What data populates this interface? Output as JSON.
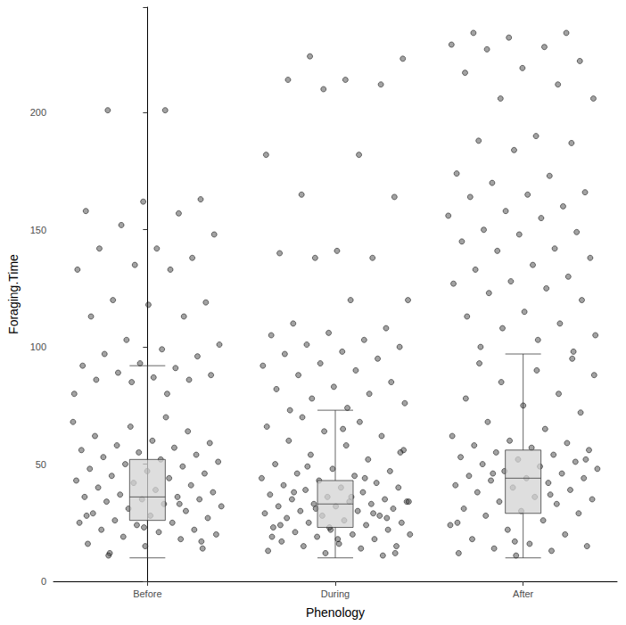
{
  "chart_data": {
    "type": "boxplot",
    "x_label": "Phenology",
    "y_label": "Foraging.Time",
    "categories": [
      "Before",
      "During",
      "After"
    ],
    "ylim": [
      0,
      245
    ],
    "yticks": [
      0,
      50,
      100,
      150,
      200
    ],
    "grid": false,
    "color": "#d3d3d3",
    "boxes": [
      {
        "min": 10,
        "q1": 26,
        "median": 36,
        "q3": 52,
        "max": 92
      },
      {
        "min": 10,
        "q1": 23,
        "median": 33,
        "q3": 43,
        "max": 73
      },
      {
        "min": 10,
        "q1": 29,
        "median": 44,
        "q3": 56,
        "max": 97
      }
    ],
    "points": [
      [
        201,
        201,
        163,
        162,
        158,
        157,
        152,
        148,
        142,
        142,
        138,
        135,
        133,
        133,
        120,
        119,
        118,
        113,
        113,
        103,
        101,
        99,
        97,
        96,
        93,
        92,
        91,
        89,
        88,
        87,
        86,
        86,
        85,
        80,
        80,
        12,
        14,
        15,
        16,
        18,
        19,
        20,
        21,
        22,
        22,
        24,
        25,
        25,
        26,
        27,
        28,
        29,
        30,
        31,
        32,
        33,
        34,
        35,
        35,
        36,
        36,
        37,
        38,
        39,
        40,
        41,
        42,
        43,
        44,
        45,
        46,
        47,
        48,
        49,
        50,
        51,
        52,
        53,
        54,
        55,
        56,
        57,
        58,
        59,
        60,
        62,
        64,
        66,
        68,
        70,
        11,
        17,
        23,
        28,
        33
      ],
      [
        224,
        223,
        214,
        214,
        212,
        210,
        182,
        182,
        165,
        164,
        141,
        140,
        138,
        138,
        120,
        120,
        110,
        108,
        106,
        105,
        103,
        101,
        100,
        98,
        97,
        95,
        93,
        92,
        90,
        88,
        85,
        83,
        82,
        80,
        78,
        76,
        74,
        73,
        11,
        12,
        13,
        14,
        15,
        15,
        16,
        17,
        18,
        19,
        20,
        20,
        21,
        22,
        22,
        23,
        24,
        25,
        25,
        26,
        27,
        28,
        28,
        29,
        30,
        30,
        31,
        32,
        32,
        33,
        33,
        34,
        34,
        35,
        35,
        36,
        37,
        38,
        39,
        40,
        40,
        41,
        42,
        43,
        44,
        45,
        46,
        47,
        48,
        50,
        52,
        54,
        56,
        58,
        60,
        62,
        64,
        66,
        68,
        70,
        12,
        18,
        24,
        29,
        31,
        34,
        36,
        38,
        27,
        23,
        19,
        44,
        49,
        55,
        65
      ],
      [
        234,
        234,
        232,
        229,
        228,
        227,
        222,
        219,
        217,
        212,
        206,
        206,
        190,
        188,
        187,
        184,
        174,
        173,
        170,
        166,
        165,
        164,
        160,
        158,
        156,
        155,
        150,
        149,
        148,
        145,
        142,
        141,
        138,
        135,
        133,
        130,
        128,
        127,
        125,
        123,
        120,
        115,
        113,
        110,
        108,
        105,
        103,
        100,
        98,
        11,
        12,
        13,
        14,
        15,
        16,
        18,
        20,
        22,
        24,
        26,
        28,
        29,
        30,
        31,
        33,
        34,
        35,
        36,
        38,
        39,
        40,
        41,
        42,
        43,
        44,
        44,
        45,
        46,
        47,
        48,
        49,
        50,
        51,
        52,
        53,
        54,
        55,
        56,
        57,
        58,
        59,
        60,
        62,
        65,
        68,
        72,
        75,
        78,
        80,
        85,
        88,
        90,
        93,
        95,
        17,
        25,
        37,
        46,
        52
      ]
    ]
  }
}
